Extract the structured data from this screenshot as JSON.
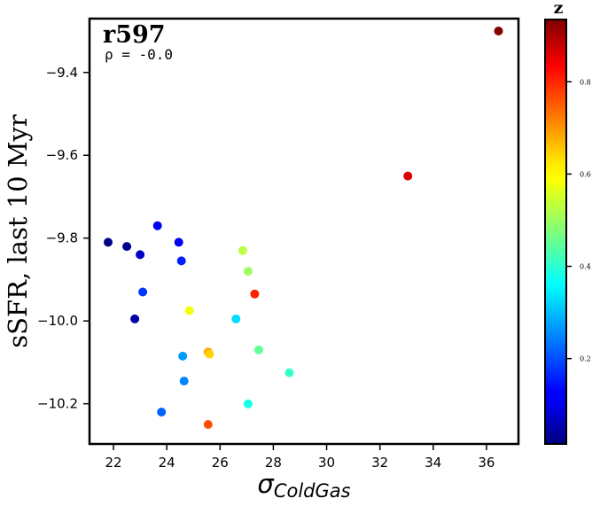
{
  "chart_data": {
    "type": "scatter",
    "title": "r597",
    "subtitle": "ρ = -0.0",
    "xlabel": "σ",
    "xlabel_subscript": "ColdGas",
    "ylabel": "sSFR, last 10 Myr",
    "xlim": [
      21.1,
      37.2
    ],
    "ylim": [
      -10.297,
      -9.27
    ],
    "xticks": [
      22,
      24,
      26,
      28,
      30,
      32,
      34,
      36
    ],
    "yticks": [
      -10.2,
      -10.0,
      -9.8,
      -9.6,
      -9.4
    ],
    "ytick_labels": [
      "−10.2",
      "−10.0",
      "−9.8",
      "−9.6",
      "−9.4"
    ],
    "grid": false,
    "colormap": "jet",
    "colorbar": {
      "label": "z",
      "range": [
        0.015,
        0.935
      ],
      "ticks": [
        0.2,
        0.4,
        0.6,
        0.8
      ],
      "tick_labels": [
        "0.2",
        "0.4",
        "0.6",
        "0.8"
      ]
    },
    "points": [
      {
        "x": 21.8,
        "y": -9.81,
        "z": 0.02
      },
      {
        "x": 22.5,
        "y": -9.82,
        "z": 0.03
      },
      {
        "x": 23.0,
        "y": -9.84,
        "z": 0.08
      },
      {
        "x": 22.8,
        "y": -9.995,
        "z": 0.05
      },
      {
        "x": 23.1,
        "y": -9.93,
        "z": 0.18
      },
      {
        "x": 23.65,
        "y": -9.77,
        "z": 0.12
      },
      {
        "x": 24.45,
        "y": -9.81,
        "z": 0.12
      },
      {
        "x": 24.55,
        "y": -9.855,
        "z": 0.16
      },
      {
        "x": 23.8,
        "y": -10.22,
        "z": 0.22
      },
      {
        "x": 24.6,
        "y": -10.085,
        "z": 0.27
      },
      {
        "x": 24.65,
        "y": -10.145,
        "z": 0.25
      },
      {
        "x": 24.85,
        "y": -9.975,
        "z": 0.58
      },
      {
        "x": 25.55,
        "y": -10.075,
        "z": 0.67
      },
      {
        "x": 25.6,
        "y": -10.08,
        "z": 0.63
      },
      {
        "x": 25.55,
        "y": -10.25,
        "z": 0.75
      },
      {
        "x": 26.6,
        "y": -9.995,
        "z": 0.33
      },
      {
        "x": 26.85,
        "y": -9.83,
        "z": 0.53
      },
      {
        "x": 27.05,
        "y": -9.88,
        "z": 0.5
      },
      {
        "x": 27.3,
        "y": -9.935,
        "z": 0.79
      },
      {
        "x": 27.45,
        "y": -10.07,
        "z": 0.45
      },
      {
        "x": 27.05,
        "y": -10.2,
        "z": 0.38
      },
      {
        "x": 28.6,
        "y": -10.125,
        "z": 0.41
      },
      {
        "x": 33.05,
        "y": -9.65,
        "z": 0.85
      },
      {
        "x": 36.45,
        "y": -9.3,
        "z": 0.93
      }
    ]
  }
}
